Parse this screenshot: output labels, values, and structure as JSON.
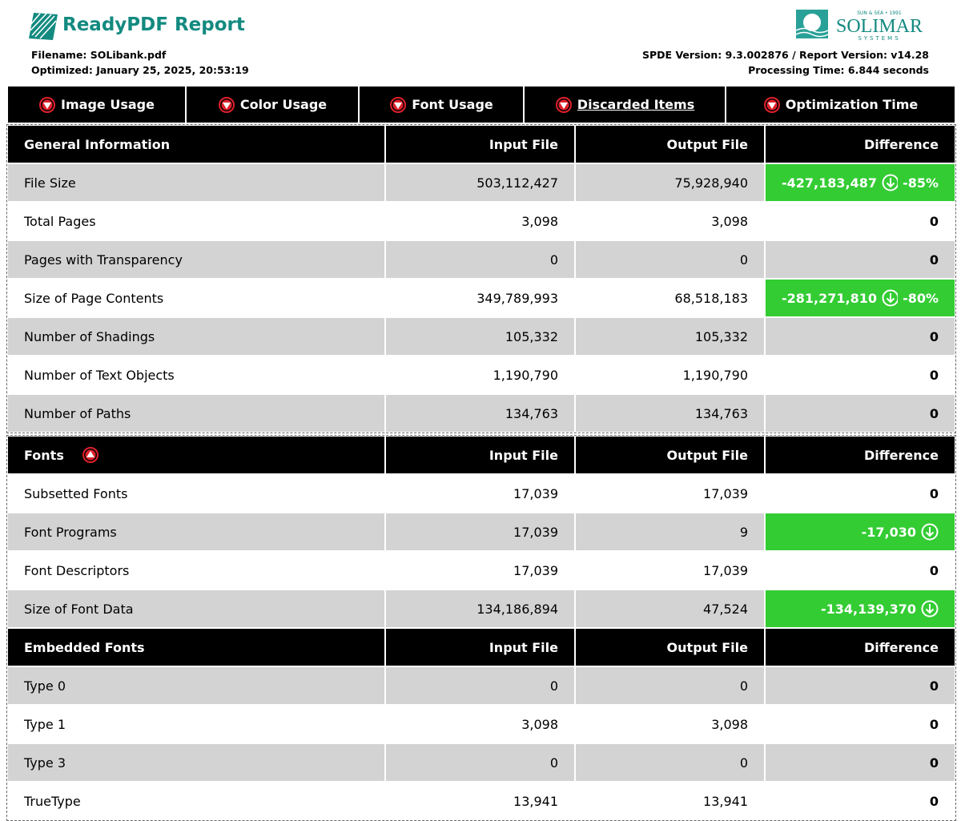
{
  "header": {
    "title": "ReadyPDF Report",
    "filename": "Filename: SOLibank.pdf",
    "optimized": "Optimized: January 25, 2025, 20:53:19",
    "version": "SPDE Version: 9.3.002876 / Report Version: v14.28",
    "processing": "Processing Time: 6.844 seconds",
    "logo": {
      "tagline": "SUN & SEA • 1991",
      "name": "SOLIMAR",
      "sub": "SYSTEMS"
    }
  },
  "nav": [
    "Image Usage",
    "Color Usage",
    "Font Usage",
    "Discarded Items",
    "Optimization Time"
  ],
  "groups": [
    {
      "sections": [
        {
          "title": "General Information",
          "columns": [
            "Input File",
            "Output File",
            "Difference"
          ],
          "first_shaded": true,
          "rows": [
            {
              "label": "File Size",
              "input": "503,112,427",
              "output": "75,928,940",
              "difference": "-427,183,487",
              "percent": "-85%",
              "highlight": true
            },
            {
              "label": "Total Pages",
              "input": "3,098",
              "output": "3,098",
              "difference": "0"
            },
            {
              "label": "Pages with Transparency",
              "input": "0",
              "output": "0",
              "difference": "0"
            },
            {
              "label": "Size of Page Contents",
              "input": "349,789,993",
              "output": "68,518,183",
              "difference": "-281,271,810",
              "percent": "-80%",
              "highlight": true
            },
            {
              "label": "Number of Shadings",
              "input": "105,332",
              "output": "105,332",
              "difference": "0"
            },
            {
              "label": "Number of Text Objects",
              "input": "1,190,790",
              "output": "1,190,790",
              "difference": "0"
            },
            {
              "label": "Number of Paths",
              "input": "134,763",
              "output": "134,763",
              "difference": "0"
            }
          ]
        }
      ]
    },
    {
      "sections": [
        {
          "title": "Fonts",
          "icon": "up",
          "columns": [
            "Input File",
            "Output File",
            "Difference"
          ],
          "first_shaded": false,
          "rows": [
            {
              "label": "Subsetted Fonts",
              "input": "17,039",
              "output": "17,039",
              "difference": "0"
            },
            {
              "label": "Font Programs",
              "input": "17,039",
              "output": "9",
              "difference": "-17,030",
              "highlight": true
            },
            {
              "label": "Font Descriptors",
              "input": "17,039",
              "output": "17,039",
              "difference": "0"
            },
            {
              "label": "Size of Font Data",
              "input": "134,186,894",
              "output": "47,524",
              "difference": "-134,139,370",
              "highlight": true
            }
          ]
        },
        {
          "title": "Embedded Fonts",
          "columns": [
            "Input File",
            "Output File",
            "Difference"
          ],
          "first_shaded": true,
          "rows": [
            {
              "label": "Type 0",
              "input": "0",
              "output": "0",
              "difference": "0"
            },
            {
              "label": "Type 1",
              "input": "3,098",
              "output": "3,098",
              "difference": "0"
            },
            {
              "label": "Type 3",
              "input": "0",
              "output": "0",
              "difference": "0"
            },
            {
              "label": "TrueType",
              "input": "13,941",
              "output": "13,941",
              "difference": "0"
            }
          ]
        }
      ]
    }
  ]
}
